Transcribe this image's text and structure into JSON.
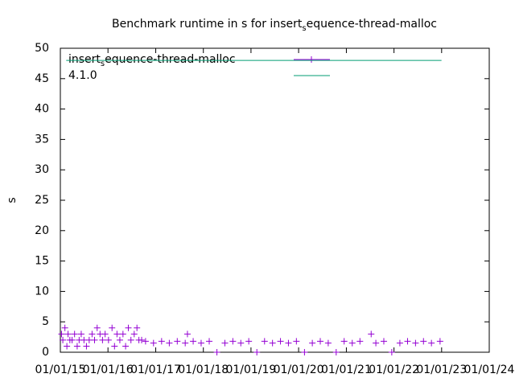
{
  "chart_data": {
    "type": "scatter",
    "title": [
      "Benchmark runtime in s for insert",
      "s",
      "equence-thread-malloc"
    ],
    "y_label": "s",
    "series": [
      {
        "name": [
          "insert",
          "s",
          "equence-thread-malloc"
        ],
        "color": "#9400d3",
        "style": "points",
        "x": [
          "2015-01-10",
          "2015-01-20",
          "2015-02-05",
          "2015-02-20",
          "2015-03-01",
          "2015-03-15",
          "2015-04-01",
          "2015-04-20",
          "2015-05-10",
          "2015-05-25",
          "2015-06-10",
          "2015-07-01",
          "2015-07-20",
          "2015-08-10",
          "2015-09-01",
          "2015-09-20",
          "2015-10-10",
          "2015-11-01",
          "2015-11-20",
          "2015-12-10",
          "2016-01-05",
          "2016-02-01",
          "2016-02-20",
          "2016-03-10",
          "2016-04-01",
          "2016-04-25",
          "2016-05-15",
          "2016-06-05",
          "2016-06-25",
          "2016-07-20",
          "2016-08-10",
          "2016-08-25",
          "2016-09-15",
          "2016-10-15",
          "2016-12-15",
          "2017-02-15",
          "2017-04-15",
          "2017-06-15",
          "2017-08-15",
          "2017-09-01",
          "2017-10-15",
          "2017-12-15",
          "2018-02-15",
          "2018-04-15",
          "2018-06-15",
          "2018-08-15",
          "2018-10-15",
          "2018-12-15",
          "2019-02-15",
          "2019-04-15",
          "2019-06-15",
          "2019-08-15",
          "2019-10-15",
          "2019-12-15",
          "2020-02-15",
          "2020-04-15",
          "2020-06-15",
          "2020-08-15",
          "2020-10-15",
          "2020-12-15",
          "2021-02-15",
          "2021-04-15",
          "2021-07-10",
          "2021-08-15",
          "2021-10-15",
          "2021-12-15",
          "2022-02-15",
          "2022-04-15",
          "2022-06-15",
          "2022-08-15",
          "2022-10-15",
          "2022-12-20"
        ],
        "values": [
          3,
          2,
          4,
          1,
          3,
          2,
          2,
          3,
          1,
          2,
          3,
          2,
          1,
          2,
          3,
          2,
          4,
          3,
          2,
          3,
          2,
          4,
          1,
          3,
          2,
          3,
          1,
          4,
          2,
          3,
          4,
          2,
          2,
          1.8,
          1.5,
          1.8,
          1.5,
          1.8,
          1.5,
          3,
          1.8,
          1.5,
          1.8,
          0,
          1.5,
          1.8,
          1.5,
          1.8,
          0,
          1.8,
          1.5,
          1.8,
          1.5,
          1.8,
          0,
          1.5,
          1.8,
          1.5,
          0,
          1.8,
          1.5,
          1.8,
          3,
          1.5,
          1.8,
          0,
          1.5,
          1.8,
          1.5,
          1.8,
          1.5,
          1.8
        ]
      },
      {
        "name": "4.1.0",
        "color": "#009e73",
        "style": "line",
        "x": [
          "2015-02-15",
          "2022-12-31"
        ],
        "values": [
          48,
          48
        ]
      }
    ],
    "xlim": [
      "2015-01-01",
      "2024-01-01"
    ],
    "xticks": [
      {
        "value": "2015-01-01",
        "label": "01/01/15"
      },
      {
        "value": "2016-01-01",
        "label": "01/01/16"
      },
      {
        "value": "2017-01-01",
        "label": "01/01/17"
      },
      {
        "value": "2018-01-01",
        "label": "01/01/18"
      },
      {
        "value": "2019-01-01",
        "label": "01/01/19"
      },
      {
        "value": "2020-01-01",
        "label": "01/01/20"
      },
      {
        "value": "2021-01-01",
        "label": "01/01/21"
      },
      {
        "value": "2022-01-01",
        "label": "01/01/22"
      },
      {
        "value": "2023-01-01",
        "label": "01/01/23"
      },
      {
        "value": "2024-01-01",
        "label": "01/01/24"
      }
    ],
    "ylim": [
      0,
      50
    ],
    "yticks": [
      0,
      5,
      10,
      15,
      20,
      25,
      30,
      35,
      40,
      45,
      50
    ],
    "legend": "top-left"
  }
}
